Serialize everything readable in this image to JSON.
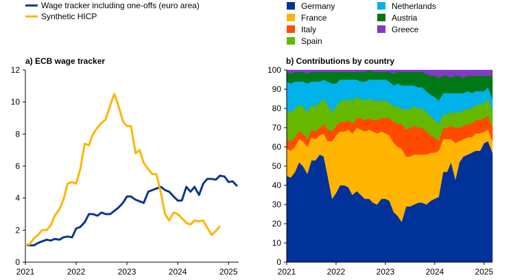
{
  "chart_data": [
    {
      "type": "line",
      "title": "a) ECB wage tracker",
      "legend": {
        "placement": "top-left"
      },
      "x_ticks": [
        "2021",
        "2022",
        "2023",
        "2024",
        "2025"
      ],
      "y_ticks": [
        "0",
        "2",
        "4",
        "6",
        "8",
        "10",
        "12"
      ],
      "xlim": [
        2021.0,
        2025.2
      ],
      "ylim": [
        0,
        12
      ],
      "grid": false,
      "series": [
        {
          "name": "Wage tracker including one-offs (euro area)",
          "color": "#0a3393",
          "points": [
            [
              2021.0,
              1.1
            ],
            [
              2021.08,
              1.05
            ],
            [
              2021.17,
              1.05
            ],
            [
              2021.25,
              1.2
            ],
            [
              2021.33,
              1.3
            ],
            [
              2021.42,
              1.4
            ],
            [
              2021.5,
              1.35
            ],
            [
              2021.58,
              1.45
            ],
            [
              2021.67,
              1.4
            ],
            [
              2021.75,
              1.55
            ],
            [
              2021.83,
              1.6
            ],
            [
              2021.92,
              1.55
            ],
            [
              2022.0,
              2.1
            ],
            [
              2022.08,
              2.2
            ],
            [
              2022.17,
              2.5
            ],
            [
              2022.25,
              3.0
            ],
            [
              2022.33,
              3.0
            ],
            [
              2022.42,
              2.9
            ],
            [
              2022.5,
              3.1
            ],
            [
              2022.58,
              3.0
            ],
            [
              2022.67,
              3.0
            ],
            [
              2022.75,
              3.2
            ],
            [
              2022.83,
              3.4
            ],
            [
              2022.92,
              3.7
            ],
            [
              2023.0,
              4.1
            ],
            [
              2023.08,
              4.1
            ],
            [
              2023.17,
              3.9
            ],
            [
              2023.25,
              3.8
            ],
            [
              2023.33,
              3.7
            ],
            [
              2023.42,
              4.4
            ],
            [
              2023.5,
              4.5
            ],
            [
              2023.58,
              4.6
            ],
            [
              2023.67,
              4.7
            ],
            [
              2023.75,
              4.5
            ],
            [
              2023.83,
              4.4
            ],
            [
              2023.92,
              4.1
            ],
            [
              2024.0,
              3.85
            ],
            [
              2024.08,
              3.85
            ],
            [
              2024.17,
              4.7
            ],
            [
              2024.25,
              4.4
            ],
            [
              2024.33,
              4.7
            ],
            [
              2024.42,
              4.2
            ],
            [
              2024.5,
              4.9
            ],
            [
              2024.58,
              5.2
            ],
            [
              2024.67,
              5.2
            ],
            [
              2024.75,
              5.15
            ],
            [
              2024.83,
              5.4
            ],
            [
              2024.92,
              5.35
            ],
            [
              2025.0,
              5.0
            ],
            [
              2025.08,
              5.05
            ],
            [
              2025.17,
              4.75
            ]
          ]
        },
        {
          "name": "Synthetic HICP",
          "color": "#ffb400",
          "points": [
            [
              2021.0,
              1.1
            ],
            [
              2021.08,
              1.1
            ],
            [
              2021.17,
              1.5
            ],
            [
              2021.25,
              1.7
            ],
            [
              2021.33,
              2.0
            ],
            [
              2021.42,
              2.0
            ],
            [
              2021.5,
              2.3
            ],
            [
              2021.58,
              2.9
            ],
            [
              2021.67,
              3.3
            ],
            [
              2021.75,
              3.9
            ],
            [
              2021.83,
              4.9
            ],
            [
              2021.92,
              5.0
            ],
            [
              2022.0,
              4.9
            ],
            [
              2022.08,
              5.8
            ],
            [
              2022.17,
              7.4
            ],
            [
              2022.25,
              7.3
            ],
            [
              2022.33,
              8.0
            ],
            [
              2022.42,
              8.4
            ],
            [
              2022.5,
              8.7
            ],
            [
              2022.58,
              8.9
            ],
            [
              2022.67,
              9.8
            ],
            [
              2022.75,
              10.5
            ],
            [
              2022.83,
              9.8
            ],
            [
              2022.92,
              8.8
            ],
            [
              2023.0,
              8.5
            ],
            [
              2023.08,
              8.5
            ],
            [
              2023.17,
              6.8
            ],
            [
              2023.25,
              7.0
            ],
            [
              2023.33,
              6.2
            ],
            [
              2023.42,
              5.8
            ],
            [
              2023.5,
              5.5
            ],
            [
              2023.58,
              5.5
            ],
            [
              2023.67,
              4.3
            ],
            [
              2023.75,
              3.0
            ],
            [
              2023.83,
              2.6
            ],
            [
              2023.92,
              3.1
            ],
            [
              2024.0,
              3.0
            ],
            [
              2024.08,
              2.75
            ],
            [
              2024.17,
              2.45
            ],
            [
              2024.25,
              2.35
            ],
            [
              2024.33,
              2.6
            ],
            [
              2024.42,
              2.55
            ],
            [
              2024.5,
              2.6
            ],
            [
              2024.58,
              2.15
            ],
            [
              2024.67,
              1.7
            ],
            [
              2024.75,
              1.95
            ],
            [
              2024.83,
              2.25
            ]
          ]
        }
      ]
    },
    {
      "type": "area",
      "stacked": true,
      "title": "b) Contributions by country",
      "legend": {
        "placement": "top"
      },
      "x_ticks": [
        "2021",
        "2022",
        "2023",
        "2024",
        "2025"
      ],
      "y_ticks": [
        "0",
        "10",
        "20",
        "30",
        "40",
        "50",
        "60",
        "70",
        "80",
        "90",
        "100"
      ],
      "xlim": [
        2021.0,
        2025.17
      ],
      "ylim": [
        0,
        100
      ],
      "grid": false,
      "x": [
        2021.0,
        2021.08,
        2021.17,
        2021.25,
        2021.33,
        2021.42,
        2021.5,
        2021.58,
        2021.67,
        2021.75,
        2021.83,
        2021.92,
        2022.0,
        2022.08,
        2022.17,
        2022.25,
        2022.33,
        2022.42,
        2022.5,
        2022.58,
        2022.67,
        2022.75,
        2022.83,
        2022.92,
        2023.0,
        2023.08,
        2023.17,
        2023.25,
        2023.33,
        2023.42,
        2023.5,
        2023.58,
        2023.67,
        2023.75,
        2023.83,
        2023.92,
        2024.0,
        2024.08,
        2024.17,
        2024.25,
        2024.33,
        2024.42,
        2024.5,
        2024.58,
        2024.67,
        2024.75,
        2024.83,
        2024.92,
        2025.0,
        2025.08,
        2025.17
      ],
      "series": [
        {
          "name": "Germany",
          "color": "#003299",
          "values": [
            45,
            44,
            47,
            52,
            50,
            46,
            53,
            53,
            56,
            55,
            45,
            33,
            36,
            40,
            40,
            39,
            35,
            37,
            35,
            33,
            33,
            31,
            30,
            33,
            33,
            32,
            26,
            24,
            21,
            29,
            29,
            30,
            31,
            31,
            30,
            32,
            33,
            34,
            47,
            47,
            52,
            43,
            52,
            55,
            56,
            57,
            58,
            58,
            62,
            63,
            57
          ]
        },
        {
          "name": "France",
          "color": "#ffb400",
          "values": [
            14,
            14,
            13,
            12,
            13,
            14,
            12,
            11,
            10,
            12,
            18,
            30,
            30,
            28,
            28,
            30,
            32,
            33,
            34,
            35,
            36,
            37,
            37,
            35,
            34,
            34,
            36,
            36,
            38,
            26,
            26,
            26,
            25,
            25,
            26,
            25,
            24,
            24,
            17,
            17,
            12,
            19,
            11,
            9,
            9,
            8,
            9,
            9,
            6,
            6,
            6
          ]
        },
        {
          "name": "Italy",
          "color": "#ff4b00",
          "values": [
            5,
            5,
            5,
            4,
            4,
            4,
            4,
            4,
            4,
            5,
            6,
            5,
            5,
            5,
            5,
            5,
            5,
            5,
            6,
            6,
            6,
            6,
            7,
            7,
            8,
            9,
            11,
            12,
            13,
            14,
            15,
            15,
            14,
            14,
            12,
            9,
            8,
            5,
            6,
            6,
            7,
            8,
            7,
            7,
            7,
            7,
            7,
            7,
            7,
            7,
            7
          ]
        },
        {
          "name": "Spain",
          "color": "#65b800",
          "values": [
            15,
            15,
            15,
            14,
            14,
            14,
            13,
            13,
            13,
            13,
            13,
            10,
            10,
            11,
            11,
            11,
            12,
            11,
            10,
            10,
            10,
            10,
            10,
            9,
            9,
            8,
            8,
            9,
            8,
            10,
            10,
            10,
            10,
            10,
            10,
            10,
            9,
            9,
            7,
            7,
            7,
            8,
            8,
            8,
            8,
            8,
            8,
            8,
            8,
            9,
            9
          ]
        },
        {
          "name": "Netherlands",
          "color": "#00b1ea",
          "values": [
            15,
            15,
            14,
            12,
            13,
            15,
            12,
            13,
            11,
            10,
            12,
            15,
            12,
            11,
            11,
            10,
            11,
            9,
            9,
            10,
            10,
            11,
            11,
            11,
            11,
            11,
            11,
            12,
            12,
            13,
            12,
            11,
            11,
            11,
            11,
            11,
            12,
            12,
            11,
            11,
            10,
            10,
            10,
            9,
            9,
            8,
            7,
            7,
            6,
            6,
            6
          ]
        },
        {
          "name": "Austria",
          "color": "#007816",
          "values": [
            5,
            5,
            5,
            5,
            5,
            5,
            5,
            5,
            5,
            4,
            5,
            6,
            6,
            4,
            4,
            4,
            4,
            4,
            5,
            5,
            5,
            4,
            4,
            4,
            4,
            5,
            6,
            6,
            7,
            7,
            7,
            7,
            8,
            8,
            9,
            10,
            11,
            12,
            9,
            9,
            8,
            9,
            9,
            8,
            8,
            9,
            8,
            8,
            8,
            6,
            12
          ]
        },
        {
          "name": "Greece",
          "color": "#8139c6",
          "values": [
            1,
            2,
            1,
            1,
            1,
            2,
            1,
            1,
            1,
            1,
            1,
            1,
            1,
            1,
            1,
            1,
            1,
            1,
            1,
            1,
            0,
            1,
            1,
            1,
            1,
            1,
            2,
            1,
            1,
            1,
            1,
            1,
            1,
            1,
            2,
            3,
            3,
            4,
            3,
            3,
            4,
            3,
            3,
            4,
            3,
            3,
            3,
            3,
            3,
            3,
            3
          ]
        }
      ]
    }
  ]
}
